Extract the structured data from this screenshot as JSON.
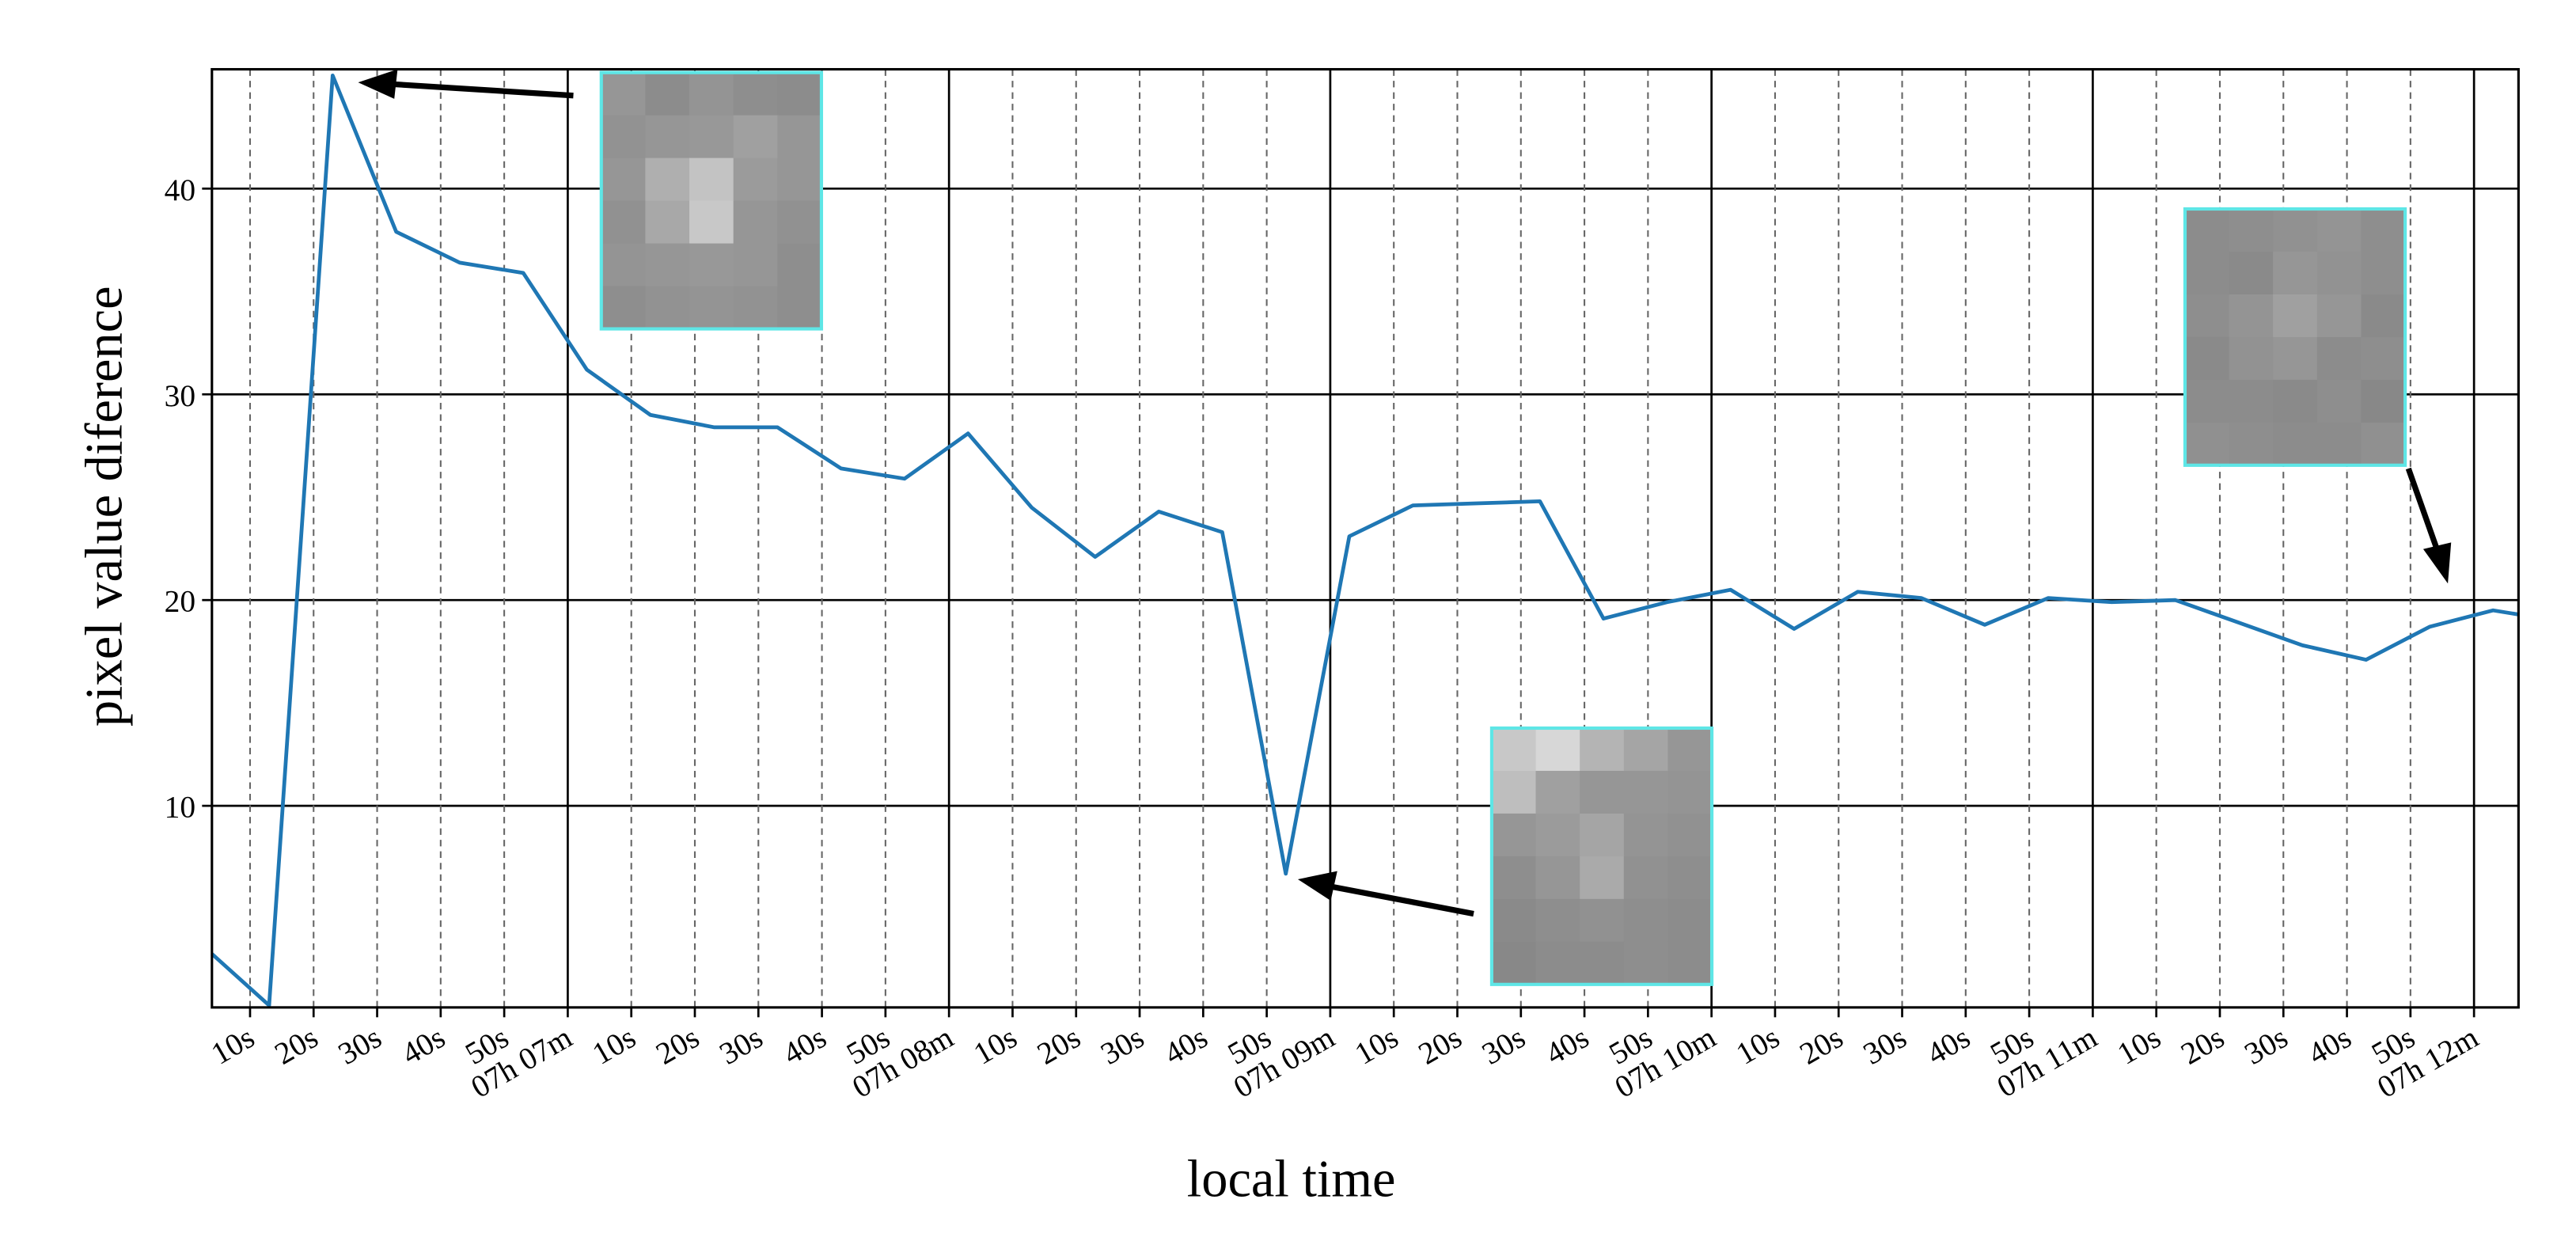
{
  "chart_data": {
    "type": "line",
    "x_label": "local time",
    "y_label": "pixel value diference",
    "x": [
      "07:06:04",
      "07:06:13",
      "07:06:23",
      "07:06:33",
      "07:06:43",
      "07:06:53",
      "07:07:03",
      "07:07:13",
      "07:07:23",
      "07:07:33",
      "07:07:43",
      "07:07:53",
      "07:08:03",
      "07:08:13",
      "07:08:23",
      "07:08:33",
      "07:08:43",
      "07:08:53",
      "07:09:03",
      "07:09:13",
      "07:09:23",
      "07:09:33",
      "07:09:43",
      "07:09:53",
      "07:10:03",
      "07:10:13",
      "07:10:23",
      "07:10:33",
      "07:10:43",
      "07:10:53",
      "07:11:03",
      "07:11:13",
      "07:11:23",
      "07:11:33",
      "07:11:43",
      "07:11:53",
      "07:12:03",
      "07:12:07"
    ],
    "series": [
      {
        "color": "#1f77b4",
        "values": [
          2.8,
          0.3,
          45.5,
          37.9,
          36.4,
          35.9,
          31.2,
          29.0,
          28.4,
          28.4,
          26.4,
          25.9,
          28.1,
          24.5,
          22.1,
          24.3,
          23.3,
          6.7,
          23.1,
          24.6,
          24.7,
          24.8,
          19.1,
          19.9,
          20.5,
          18.6,
          20.4,
          20.1,
          18.8,
          20.1,
          19.9,
          20.0,
          18.9,
          17.8,
          17.1,
          18.7,
          19.5,
          19.3
        ]
      }
    ],
    "xlim": [
      "07:06:04",
      "07:12:07"
    ],
    "ylim": [
      0.2,
      45.8
    ],
    "yticks": [
      10,
      20,
      30,
      40
    ],
    "xticks": [
      {
        "value": "07:06:10",
        "label": "10s"
      },
      {
        "value": "07:06:20",
        "label": "20s"
      },
      {
        "value": "07:06:30",
        "label": "30s"
      },
      {
        "value": "07:06:40",
        "label": "40s"
      },
      {
        "value": "07:06:50",
        "label": "50s"
      },
      {
        "value": "07:07:00",
        "label": "07h 07m"
      },
      {
        "value": "07:07:10",
        "label": "10s"
      },
      {
        "value": "07:07:20",
        "label": "20s"
      },
      {
        "value": "07:07:30",
        "label": "30s"
      },
      {
        "value": "07:07:40",
        "label": "40s"
      },
      {
        "value": "07:07:50",
        "label": "50s"
      },
      {
        "value": "07:08:00",
        "label": "07h 08m"
      },
      {
        "value": "07:08:10",
        "label": "10s"
      },
      {
        "value": "07:08:20",
        "label": "20s"
      },
      {
        "value": "07:08:30",
        "label": "30s"
      },
      {
        "value": "07:08:40",
        "label": "40s"
      },
      {
        "value": "07:08:50",
        "label": "50s"
      },
      {
        "value": "07:09:00",
        "label": "07h 09m"
      },
      {
        "value": "07:09:10",
        "label": "10s"
      },
      {
        "value": "07:09:20",
        "label": "20s"
      },
      {
        "value": "07:09:30",
        "label": "30s"
      },
      {
        "value": "07:09:40",
        "label": "40s"
      },
      {
        "value": "07:09:50",
        "label": "50s"
      },
      {
        "value": "07:10:00",
        "label": "07h 10m"
      },
      {
        "value": "07:10:10",
        "label": "10s"
      },
      {
        "value": "07:10:20",
        "label": "20s"
      },
      {
        "value": "07:10:30",
        "label": "30s"
      },
      {
        "value": "07:10:40",
        "label": "40s"
      },
      {
        "value": "07:10:50",
        "label": "50s"
      },
      {
        "value": "07:11:00",
        "label": "07h 11m"
      },
      {
        "value": "07:11:10",
        "label": "10s"
      },
      {
        "value": "07:11:20",
        "label": "20s"
      },
      {
        "value": "07:11:30",
        "label": "30s"
      },
      {
        "value": "07:11:40",
        "label": "40s"
      },
      {
        "value": "07:11:50",
        "label": "50s"
      },
      {
        "value": "07:12:00",
        "label": "07h 12m"
      }
    ],
    "grid": true
  }
}
